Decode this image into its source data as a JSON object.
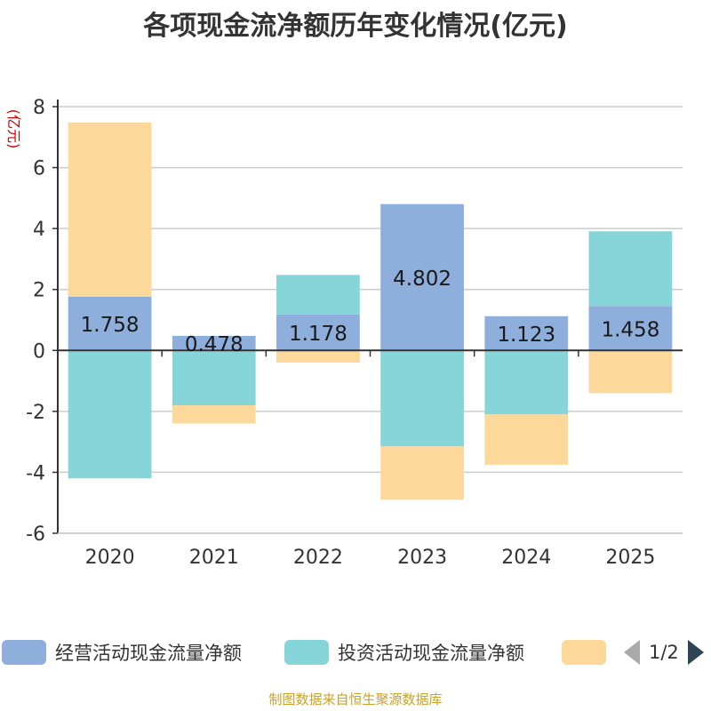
{
  "chart_data": {
    "type": "bar",
    "stacked": true,
    "title": "各项现金流净额历年变化情况(亿元)",
    "ylabel": "(亿元)",
    "ylim": [
      -6,
      8
    ],
    "yticks": [
      8,
      6,
      4,
      2,
      0,
      -2,
      -4,
      -6
    ],
    "categories": [
      "2020",
      "2021",
      "2022",
      "2023",
      "2024",
      "2025"
    ],
    "series": [
      {
        "name": "经营活动现金流量净额",
        "color": "#8eaedb",
        "values": [
          1.758,
          0.478,
          1.178,
          4.802,
          1.123,
          1.458
        ],
        "labels": [
          "1.758",
          "0.478",
          "1.178",
          "4.802",
          "1.123",
          "1.458"
        ]
      },
      {
        "name": "投资活动现金流量净额",
        "color": "#86d5d8",
        "values": [
          -4.2,
          -1.8,
          1.3,
          -3.15,
          -2.1,
          2.45
        ]
      },
      {
        "name": "",
        "color": "#fdd89b",
        "values": [
          5.72,
          -0.6,
          -0.4,
          -1.75,
          -1.65,
          -1.4
        ]
      }
    ],
    "legend_position": "bottom",
    "pager": "1/2"
  },
  "source": "制图数据来自恒生聚源数据库"
}
